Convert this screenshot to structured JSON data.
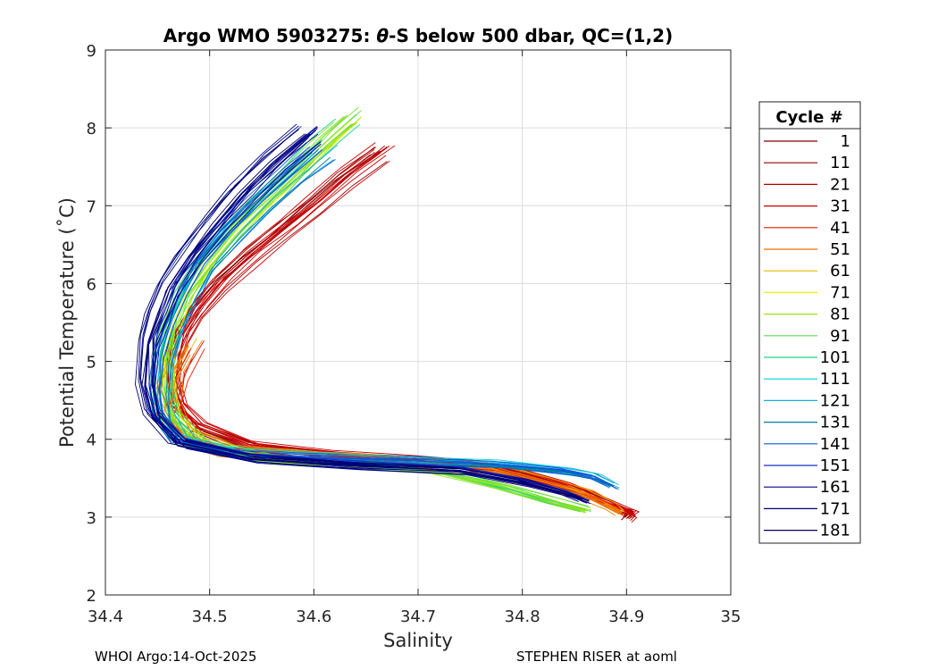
{
  "chart_data": {
    "type": "line",
    "title_prefix": "Argo WMO 5903275: ",
    "title_theta": "θ",
    "title_suffix": "-S below 500 dbar,  QC=(1,2)",
    "xlabel": "Salinity",
    "ylabel": "Potential Temperature (˚C)",
    "xlim": [
      34.4,
      35.0
    ],
    "ylim": [
      2,
      9
    ],
    "xticks": [
      "34.4",
      "34.5",
      "34.6",
      "34.7",
      "34.8",
      "34.9",
      "35"
    ],
    "yticks": [
      "2",
      "3",
      "4",
      "5",
      "6",
      "7",
      "8",
      "9"
    ],
    "grid": true,
    "legend": {
      "title": "Cycle #",
      "placement": "outside-right",
      "entries": [
        "1",
        "11",
        "21",
        "31",
        "41",
        "51",
        "61",
        "71",
        "81",
        "91",
        "101",
        "111",
        "121",
        "131",
        "141",
        "151",
        "161",
        "171",
        "181"
      ],
      "colors": [
        "#800000",
        "#990000",
        "#b30000",
        "#cc0000",
        "#e61a00",
        "#f26d00",
        "#e6b800",
        "#f0f000",
        "#9ee60e",
        "#52e04b",
        "#1ed48a",
        "#00d0d0",
        "#10b0e0",
        "#007f9c",
        "#0a5ad8",
        "#1430c8",
        "#000090",
        "#000070",
        "#00005a"
      ]
    },
    "series": [
      {
        "name": "red group (cycles 1-41)",
        "color": "#cc0000",
        "x": [
          34.664,
          34.63,
          34.6,
          34.572,
          34.54,
          34.51,
          34.488,
          34.472,
          34.465,
          34.464,
          34.47,
          34.49,
          34.54,
          34.62,
          34.7,
          34.76,
          34.8,
          34.84,
          34.87,
          34.895,
          34.905,
          34.9
        ],
        "y": [
          7.68,
          7.35,
          7.0,
          6.7,
          6.35,
          6.0,
          5.65,
          5.3,
          5.0,
          4.7,
          4.4,
          4.15,
          3.9,
          3.78,
          3.72,
          3.66,
          3.55,
          3.4,
          3.25,
          3.1,
          3.05,
          2.98
        ]
      },
      {
        "name": "orange/yellow group (cycles 51-71)",
        "color": "#f08000",
        "x": [
          34.48,
          34.465,
          34.46,
          34.475,
          34.52,
          34.6,
          34.7,
          34.77,
          34.82,
          34.86,
          34.885,
          34.895
        ],
        "y": [
          5.2,
          4.8,
          4.4,
          4.05,
          3.85,
          3.76,
          3.7,
          3.62,
          3.45,
          3.3,
          3.15,
          3.05
        ]
      },
      {
        "name": "green group (cycles 81-111)",
        "color": "#7ee02a",
        "x": [
          34.632,
          34.61,
          34.58,
          34.55,
          34.52,
          34.495,
          34.475,
          34.462,
          34.455,
          34.455,
          34.462,
          34.49,
          34.56,
          34.65,
          34.72,
          34.78,
          34.83,
          34.86
        ],
        "y": [
          8.16,
          7.9,
          7.5,
          7.1,
          6.7,
          6.3,
          5.9,
          5.5,
          5.1,
          4.7,
          4.3,
          3.95,
          3.75,
          3.68,
          3.6,
          3.4,
          3.2,
          3.1
        ]
      },
      {
        "name": "cyan/blue group (cycles 121-151)",
        "color": "#0a5ad8",
        "x": [
          34.608,
          34.58,
          34.55,
          34.52,
          34.495,
          34.478,
          34.465,
          34.456,
          34.452,
          34.455,
          34.47,
          34.52,
          34.6,
          34.7,
          34.78,
          34.84,
          34.87,
          34.888
        ],
        "y": [
          7.72,
          7.4,
          7.05,
          6.65,
          6.25,
          5.85,
          5.45,
          5.05,
          4.65,
          4.3,
          4.0,
          3.82,
          3.76,
          3.72,
          3.67,
          3.6,
          3.52,
          3.4
        ]
      },
      {
        "name": "dark blue group (cycles 161-181)",
        "color": "#000080",
        "x": [
          34.593,
          34.56,
          34.53,
          34.505,
          34.48,
          34.46,
          34.45,
          34.441,
          34.438,
          34.445,
          34.47,
          34.54,
          34.64,
          34.74,
          34.8,
          34.84,
          34.86
        ],
        "y": [
          7.92,
          7.55,
          7.15,
          6.75,
          6.35,
          5.95,
          5.6,
          5.25,
          4.7,
          4.3,
          3.95,
          3.75,
          3.66,
          3.6,
          3.45,
          3.3,
          3.2
        ]
      }
    ]
  },
  "footer": {
    "left": "WHOI Argo:14-Oct-2025",
    "right": "STEPHEN RISER at aoml"
  }
}
